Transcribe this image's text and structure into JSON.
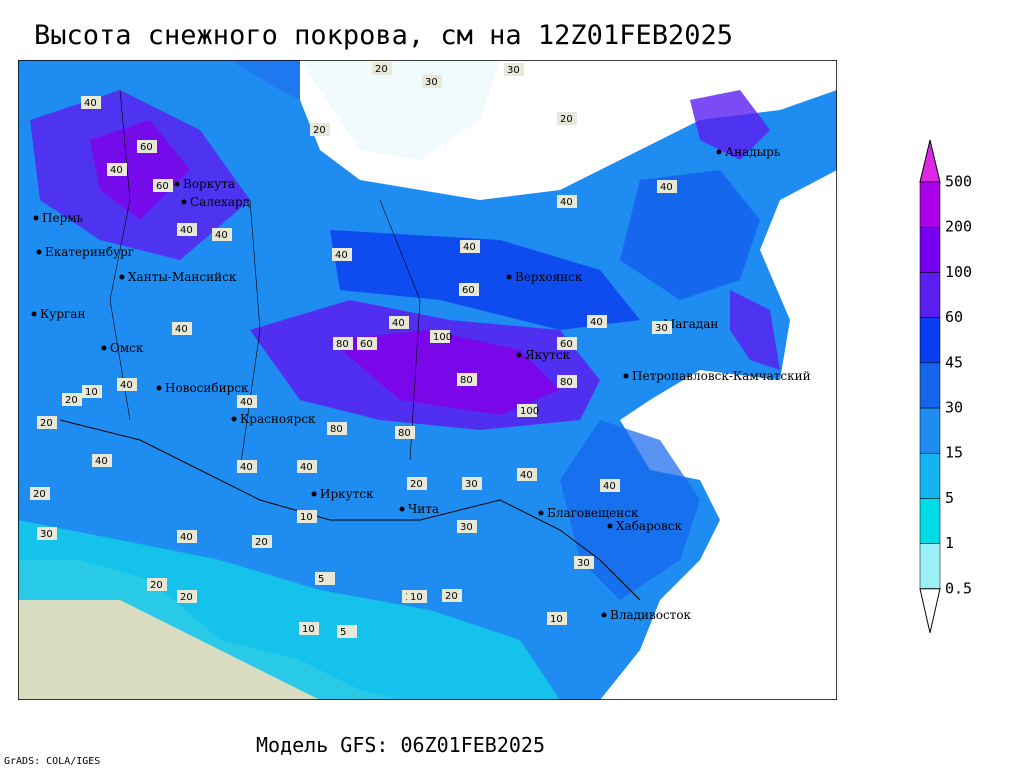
{
  "header": {
    "title": "Высота снежного покрова, см на 12Z01FEB2025"
  },
  "footer": {
    "model": "Модель GFS: 06Z01FEB2025",
    "credit": "GrADS: COLA/IGES"
  },
  "colorbar": {
    "levels": [
      0.5,
      1,
      5,
      15,
      30,
      45,
      60,
      100,
      200,
      500
    ],
    "colors": [
      "#ffffff",
      "#9af0f5",
      "#00dce6",
      "#14b4f0",
      "#1e8cf0",
      "#1464ec",
      "#0a3cf0",
      "#5a1ef0",
      "#7800f0",
      "#a800e8",
      "#dc28e6"
    ]
  },
  "cities": [
    "Воркута",
    "Салехард",
    "Пермь",
    "Екатеринбург",
    "Ханты-Мансийск",
    "Курган",
    "Омск",
    "Новосибирск",
    "Красноярск",
    "Иркутск",
    "Чита",
    "Благовещенск",
    "Хабаровск",
    "Владивосток",
    "Верхоянск",
    "Якутск",
    "Магадан",
    "Петропавловск-Камчатский",
    "Анадырь"
  ],
  "contour_labels": [
    20,
    30,
    20,
    30,
    20,
    40,
    60,
    40,
    40,
    60,
    40,
    40,
    40,
    40,
    40,
    60,
    40,
    40,
    80,
    100,
    80,
    60,
    80,
    100,
    80,
    80,
    40,
    40,
    40,
    20,
    40,
    20,
    20,
    40,
    20,
    30,
    20,
    10,
    5,
    10,
    5,
    10,
    10,
    20,
    10,
    30,
    40,
    20,
    20,
    10,
    60,
    40,
    30,
    40,
    30,
    30,
    40
  ]
}
